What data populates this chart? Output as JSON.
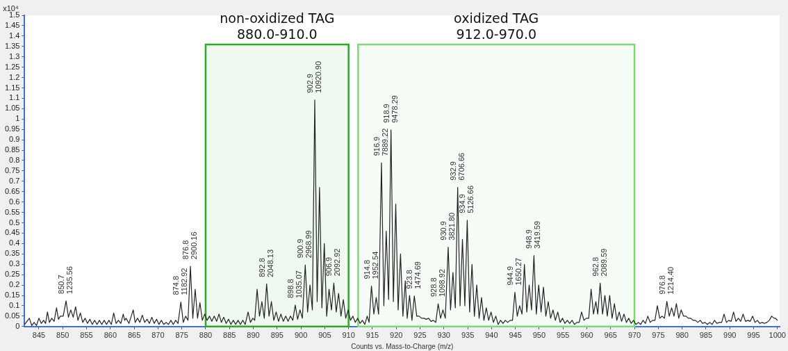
{
  "chart_data": {
    "type": "line",
    "xlabel": "Counts vs. Mass-to-Charge (m/z)",
    "ylabel": "x10⁴",
    "xlim": [
      842,
      1000.5
    ],
    "xticks": [
      845,
      850,
      855,
      860,
      865,
      870,
      875,
      880,
      885,
      890,
      895,
      900,
      905,
      910,
      915,
      920,
      925,
      930,
      935,
      940,
      945,
      950,
      955,
      960,
      965,
      970,
      975,
      980,
      985,
      990,
      995,
      1000
    ],
    "ylim": [
      0,
      1.5
    ],
    "yticks": [
      0,
      0.05,
      0.1,
      0.15,
      0.2,
      0.25,
      0.3,
      0.35,
      0.4,
      0.45,
      0.5,
      0.55,
      0.6,
      0.65,
      0.7,
      0.75,
      0.8,
      0.85,
      0.9,
      0.95,
      1,
      1.05,
      1.1,
      1.15,
      1.2,
      1.25,
      1.3,
      1.35,
      1.4,
      1.45,
      1.5
    ],
    "marker": "none",
    "legend": false,
    "grid": false,
    "series": [
      {
        "color": "#222222",
        "x": [
          842,
          843,
          843.5,
          844,
          844.5,
          845,
          845.5,
          846,
          846.4,
          846.8,
          847.2,
          847.7,
          848.2,
          848.7,
          849.1,
          849.5,
          850.1,
          850.7,
          851.2,
          851.7,
          852.2,
          852.7,
          853.2,
          853.7,
          854.2,
          854.7,
          855.2,
          855.7,
          856.2,
          856.7,
          857.2,
          857.7,
          858.2,
          858.7,
          859.2,
          859.7,
          860.2,
          860.7,
          861.2,
          861.7,
          862.2,
          862.7,
          863.0,
          863.3,
          863.9,
          864.8,
          865.2,
          865.7,
          866.2,
          866.7,
          867.2,
          867.7,
          868.2,
          868.7,
          869.2,
          869.7,
          870.2,
          870.7,
          871.2,
          871.7,
          872.2,
          872.7,
          873.2,
          873.7,
          874.2,
          874.8,
          875.3,
          875.8,
          876.3,
          876.8,
          877.3,
          877.8,
          878.3,
          878.8,
          879.3,
          879.8,
          880.3,
          880.8,
          881.3,
          881.8,
          882.3,
          882.8,
          883.3,
          883.8,
          884.3,
          884.8,
          885.3,
          885.8,
          886.3,
          886.8,
          887.3,
          887.8,
          888.3,
          888.9,
          889.4,
          889.9,
          890.3,
          890.8,
          891.3,
          891.8,
          892.3,
          892.8,
          893.3,
          893.8,
          894.3,
          894.8,
          895.3,
          895.8,
          896.3,
          896.8,
          897.3,
          897.8,
          898.3,
          898.8,
          899.3,
          899.8,
          900.3,
          900.9,
          901.4,
          901.9,
          902.4,
          902.9,
          903.4,
          903.9,
          904.4,
          904.9,
          905.4,
          905.9,
          906.4,
          906.9,
          907.4,
          907.9,
          908.4,
          908.9,
          909.4,
          909.9,
          910.4,
          910.9,
          911.4,
          911.9,
          912.4,
          912.9,
          913.4,
          913.9,
          914.3,
          914.8,
          915.3,
          915.8,
          916.3,
          916.9,
          917.4,
          917.9,
          918.4,
          918.9,
          919.4,
          919.9,
          920.4,
          920.9,
          921.4,
          921.9,
          922.3,
          922.8,
          923.3,
          923.8,
          924.3,
          924.8,
          925.3,
          925.8,
          926.3,
          926.8,
          927.3,
          927.8,
          928.3,
          928.8,
          929.3,
          929.8,
          930.3,
          930.9,
          931.4,
          931.9,
          932.4,
          932.9,
          933.4,
          933.9,
          934.4,
          934.9,
          935.4,
          935.9,
          936.4,
          936.9,
          937.4,
          937.9,
          938.4,
          938.9,
          939.4,
          939.9,
          940.4,
          940.9,
          941.4,
          941.9,
          942.4,
          942.9,
          943.4,
          943.9,
          944.4,
          944.9,
          945.4,
          945.9,
          946.4,
          946.9,
          947.4,
          947.9,
          948.4,
          948.9,
          949.4,
          949.9,
          950.4,
          950.9,
          951.4,
          951.9,
          952.4,
          952.9,
          953.4,
          953.9,
          954.4,
          954.9,
          955.4,
          955.9,
          956.4,
          956.9,
          957.4,
          957.9,
          958.4,
          958.9,
          959.4,
          959.9,
          960.4,
          960.9,
          961.4,
          961.9,
          962.3,
          962.8,
          963.3,
          963.8,
          964.3,
          964.8,
          965.3,
          965.8,
          966.3,
          966.8,
          967.3,
          967.8,
          968.3,
          968.8,
          969.3,
          969.8,
          970.3,
          970.8,
          971.3,
          971.8,
          972.3,
          972.8,
          973.3,
          973.8,
          974.3,
          974.8,
          975.3,
          975.8,
          976.3,
          976.8,
          977.3,
          977.8,
          978.3,
          978.8,
          979.3,
          979.8,
          980.3,
          980.8,
          981.3,
          981.8,
          982.3,
          982.8,
          983.3,
          983.8,
          984.3,
          984.8,
          985.3,
          985.8,
          986.3,
          986.8,
          987.3,
          987.8,
          988.3,
          988.8,
          989.3,
          989.8,
          990.3,
          990.8,
          991.3,
          991.8,
          992.3,
          992.8,
          993.3,
          993.8,
          994.3,
          994.8,
          995.3,
          995.8,
          996.3,
          996.8,
          997.3,
          997.8,
          998.3,
          998.8,
          999.3,
          999.6,
          1000
        ],
        "values": [
          0.01,
          0.04,
          0.005,
          0.02,
          0.005,
          0.04,
          0.015,
          0.03,
          0.015,
          0.07,
          0.02,
          0.04,
          0.025,
          0.09,
          0.035,
          0.05,
          0.05,
          0.123556,
          0.045,
          0.08,
          0.045,
          0.095,
          0.03,
          0.065,
          0.02,
          0.04,
          0.015,
          0.035,
          0.01,
          0.03,
          0.01,
          0.03,
          0.01,
          0.03,
          0.01,
          0.03,
          0.01,
          0.065,
          0.015,
          0.03,
          0.015,
          0.06,
          0.03,
          0.04,
          0.015,
          0.08,
          0.02,
          0.04,
          0.02,
          0.055,
          0.02,
          0.035,
          0.015,
          0.045,
          0.015,
          0.035,
          0.01,
          0.03,
          0.01,
          0.02,
          0.01,
          0.03,
          0.01,
          0.03,
          0.015,
          0.118292,
          0.02,
          0.05,
          0.03,
          0.290016,
          0.04,
          0.18,
          0.04,
          0.115,
          0.03,
          0.06,
          0.03,
          0.05,
          0.025,
          0.05,
          0.025,
          0.06,
          0.02,
          0.045,
          0.015,
          0.035,
          0.01,
          0.03,
          0.01,
          0.03,
          0.01,
          0.03,
          0.01,
          0.07,
          0.02,
          0.04,
          0.03,
          0.18,
          0.05,
          0.12,
          0.04,
          0.204813,
          0.05,
          0.12,
          0.03,
          0.07,
          0.025,
          0.06,
          0.025,
          0.05,
          0.025,
          0.05,
          0.03,
          0.103507,
          0.035,
          0.08,
          0.04,
          0.296899,
          0.07,
          0.2,
          0.08,
          1.09209,
          0.12,
          0.67,
          0.09,
          0.4,
          0.05,
          0.18,
          0.08,
          0.209292,
          0.07,
          0.16,
          0.05,
          0.13,
          0.04,
          0.08,
          0.03,
          0.05,
          0.02,
          0.04,
          0.015,
          0.03,
          0.01,
          0.05,
          0.02,
          0.195254,
          0.06,
          0.14,
          0.06,
          0.788922,
          0.1,
          0.46,
          0.13,
          0.947829,
          0.12,
          0.59,
          0.08,
          0.35,
          0.05,
          0.22,
          0.04,
          0.15,
          0.03,
          0.147469,
          0.05,
          0.05,
          0.04,
          0.04,
          0.035,
          0.04,
          0.025,
          0.03,
          0.02,
          0.109892,
          0.04,
          0.08,
          0.04,
          0.38218,
          0.08,
          0.26,
          0.09,
          0.670666,
          0.1,
          0.42,
          0.1,
          0.512666,
          0.07,
          0.3,
          0.05,
          0.2,
          0.04,
          0.14,
          0.03,
          0.09,
          0.03,
          0.07,
          0.02,
          0.05,
          0.01,
          0.03,
          0.015,
          0.03,
          0.02,
          0.03,
          0.03,
          0.165027,
          0.05,
          0.1,
          0.06,
          0.3,
          0.07,
          0.2,
          0.08,
          0.341959,
          0.06,
          0.2,
          0.07,
          0.19,
          0.05,
          0.12,
          0.04,
          0.08,
          0.03,
          0.07,
          0.02,
          0.04,
          0.015,
          0.03,
          0.015,
          0.03,
          0.01,
          0.02,
          0.02,
          0.07,
          0.03,
          0.04,
          0.04,
          0.18,
          0.06,
          0.12,
          0.06,
          0.208959,
          0.06,
          0.15,
          0.05,
          0.15,
          0.04,
          0.11,
          0.03,
          0.07,
          0.025,
          0.06,
          0.02,
          0.04,
          0.015,
          0.03,
          0.01,
          0.02,
          0.01,
          0.03,
          0.015,
          0.05,
          0.02,
          0.03,
          0.03,
          0.1,
          0.04,
          0.05,
          0.04,
          0.12144,
          0.05,
          0.09,
          0.05,
          0.11,
          0.04,
          0.08,
          0.05,
          0.05,
          0.04,
          0.04,
          0.03,
          0.03,
          0.02,
          0.03,
          0.015,
          0.02,
          0.01,
          0.02,
          0.01,
          0.03,
          0.015,
          0.02,
          0.02,
          0.06,
          0.02,
          0.03,
          0.025,
          0.07,
          0.025,
          0.04,
          0.025,
          0.06,
          0.025,
          0.03,
          0.025,
          0.05,
          0.02,
          0.03,
          0.015,
          0.02,
          0.015,
          0.02,
          0.03,
          0.05,
          0.04,
          0.04,
          0.03
        ]
      }
    ],
    "bands": [
      {
        "axis": "x",
        "from": 880,
        "to": 910,
        "label": "non-oxidized TAG\n880.0-910.0",
        "color": "#2ea82b"
      },
      {
        "axis": "x",
        "from": 912,
        "to": 970,
        "label": "oxidized TAG\n912.0-970.0",
        "color": "#7fd67b"
      }
    ],
    "annotations": [
      {
        "text": "850.7\n1235.56",
        "x": 850.7,
        "y": 0.123556
      },
      {
        "text": "874.8\n1182.92",
        "x": 874.8,
        "y": 0.118292
      },
      {
        "text": "876.8\n2900.16",
        "x": 876.8,
        "y": 0.290016
      },
      {
        "text": "892.8\n2048.13",
        "x": 892.8,
        "y": 0.204813
      },
      {
        "text": "898.8\n1035.07",
        "x": 898.8,
        "y": 0.103507
      },
      {
        "text": "900.9\n2968.99",
        "x": 900.9,
        "y": 0.296899
      },
      {
        "text": "902.9\n10920.90",
        "x": 902.9,
        "y": 1.09209
      },
      {
        "text": "906.9\n2092.92",
        "x": 906.9,
        "y": 0.209292
      },
      {
        "text": "914.8\n1952.54",
        "x": 914.8,
        "y": 0.195254
      },
      {
        "text": "916.9\n7889.22",
        "x": 916.9,
        "y": 0.788922
      },
      {
        "text": "918.9\n9478.29",
        "x": 918.9,
        "y": 0.947829
      },
      {
        "text": "923.8\n1474.69",
        "x": 923.8,
        "y": 0.147469
      },
      {
        "text": "928.8\n1098.92",
        "x": 928.8,
        "y": 0.109892
      },
      {
        "text": "930.9\n3821.80",
        "x": 930.9,
        "y": 0.38218
      },
      {
        "text": "932.9\n6706.66",
        "x": 932.9,
        "y": 0.670666
      },
      {
        "text": "934.9\n5126.66",
        "x": 934.9,
        "y": 0.512666
      },
      {
        "text": "944.9\n1650.27",
        "x": 944.9,
        "y": 0.165027
      },
      {
        "text": "948.9\n3419.59",
        "x": 948.9,
        "y": 0.341959
      },
      {
        "text": "962.8\n2089.59",
        "x": 962.8,
        "y": 0.208959
      },
      {
        "text": "976.8\n1214.40",
        "x": 976.8,
        "y": 0.12144
      }
    ]
  }
}
